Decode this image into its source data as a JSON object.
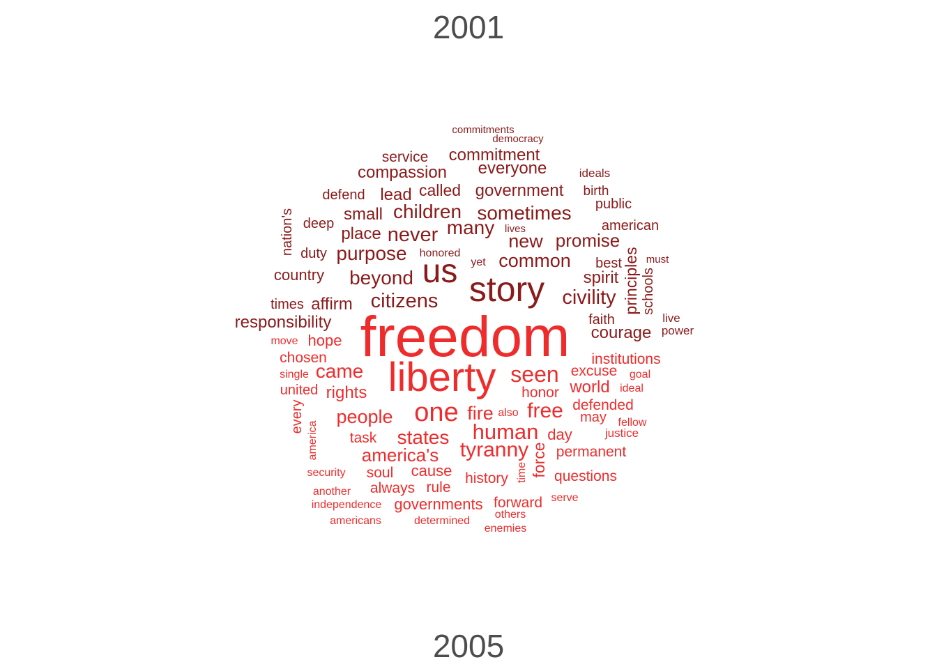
{
  "chart_data": {
    "type": "wordcloud",
    "title": "",
    "group_labels": {
      "top": "2001",
      "bottom": "2005"
    },
    "colors": {
      "2001": "#8b1a1a",
      "2005": "#ee2c2c",
      "label": "#4d4d4d"
    },
    "words_2001": [
      "commitments",
      "democracy",
      "service",
      "commitment",
      "compassion",
      "everyone",
      "ideals",
      "defend",
      "lead",
      "called",
      "government",
      "birth",
      "public",
      "nation's",
      "deep",
      "small",
      "children",
      "sometimes",
      "lives",
      "american",
      "place",
      "never",
      "many",
      "new",
      "promise",
      "duty",
      "purpose",
      "honored",
      "principles",
      "must",
      "common",
      "yet",
      "best",
      "country",
      "us",
      "beyond",
      "story",
      "spirit",
      "schools",
      "times",
      "affirm",
      "citizens",
      "civility",
      "responsibility",
      "faith",
      "live",
      "courage",
      "power"
    ],
    "words_2005": [
      "freedom",
      "move",
      "hope",
      "chosen",
      "institutions",
      "liberty",
      "single",
      "came",
      "seen",
      "excuse",
      "goal",
      "united",
      "rights",
      "honor",
      "world",
      "ideal",
      "every",
      "one",
      "defended",
      "people",
      "fire",
      "free",
      "also",
      "may",
      "fellow",
      "america",
      "task",
      "states",
      "human",
      "day",
      "justice",
      "tyranny",
      "america's",
      "permanent",
      "force",
      "soul",
      "cause",
      "time",
      "history",
      "questions",
      "security",
      "always",
      "rule",
      "another",
      "serve",
      "independence",
      "governments",
      "forward",
      "others",
      "americans",
      "determined",
      "enemies"
    ]
  }
}
